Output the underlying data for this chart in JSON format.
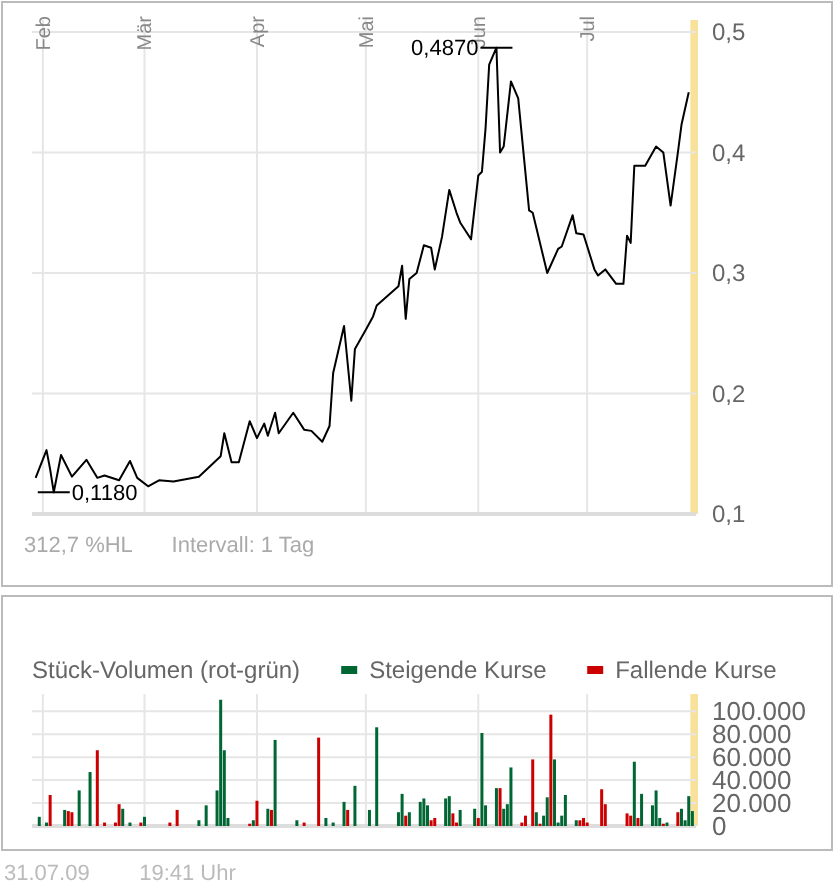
{
  "chart_data": [
    {
      "type": "line",
      "xlim": [
        "--01-29",
        "--07-31"
      ],
      "ylim": [
        0.1,
        0.51
      ],
      "xticks": [
        {
          "value": "--02-01",
          "label": "Feb"
        },
        {
          "value": "--03-01",
          "label": "Mär"
        },
        {
          "value": "--04-01",
          "label": "Apr"
        },
        {
          "value": "--05-01",
          "label": "Mai"
        },
        {
          "value": "--06-01",
          "label": "Jun"
        },
        {
          "value": "--07-01",
          "label": "Jul"
        }
      ],
      "yticks": [
        {
          "value": 0.1,
          "label": "0,1"
        },
        {
          "value": 0.2,
          "label": "0,2"
        },
        {
          "value": 0.3,
          "label": "0,3"
        },
        {
          "value": 0.4,
          "label": "0,4"
        },
        {
          "value": 0.5,
          "label": "0,5"
        }
      ],
      "grid": true,
      "legend": false,
      "marker": "none",
      "line_style": "solid",
      "bands": [
        {
          "axis": "x",
          "from": "--07-30",
          "to": "--07-31",
          "color": "#f8e19a"
        }
      ],
      "annotations": [
        {
          "text": "0,4870",
          "x": "--06-06",
          "y": 0.487
        },
        {
          "text": "0,1180",
          "x": "--02-04",
          "y": 0.118
        },
        "312,7 %HL",
        "Intervall: 1 Tag"
      ],
      "series": [
        {
          "color": "#000000",
          "x": [
            "--01-30",
            "--02-02",
            "--02-03",
            "--02-04",
            "--02-06",
            "--02-09",
            "--02-13",
            "--02-16",
            "--02-18",
            "--02-22",
            "--02-25",
            "--02-27",
            "--03-02",
            "--03-05",
            "--03-09",
            "--03-16",
            "--03-22",
            "--03-23",
            "--03-25",
            "--03-27",
            "--03-30",
            "--04-01",
            "--04-03",
            "--04-04",
            "--04-06",
            "--04-07",
            "--04-11",
            "--04-14",
            "--04-16",
            "--04-19",
            "--04-21",
            "--04-22",
            "--04-25",
            "--04-27",
            "--04-28",
            "--05-01",
            "--05-03",
            "--05-04",
            "--05-10",
            "--05-11",
            "--05-12",
            "--05-13",
            "--05-15",
            "--05-17",
            "--05-19",
            "--05-20",
            "--05-22",
            "--05-24",
            "--05-26",
            "--05-27",
            "--05-30",
            "--06-01",
            "--06-02",
            "--06-03",
            "--06-04",
            "--06-06",
            "--06-07",
            "--06-08",
            "--06-10",
            "--06-12",
            "--06-15",
            "--06-16",
            "--06-20",
            "--06-23",
            "--06-24",
            "--06-27",
            "--06-28",
            "--06-30",
            "--07-03",
            "--07-04",
            "--07-06",
            "--07-09",
            "--07-11",
            "--07-12",
            "--07-13",
            "--07-14",
            "--07-17",
            "--07-20",
            "--07-22",
            "--07-24",
            "--07-26",
            "--07-27",
            "--07-29"
          ],
          "values": [
            0.13,
            0.153,
            0.137,
            0.118,
            0.149,
            0.131,
            0.145,
            0.13,
            0.132,
            0.128,
            0.144,
            0.13,
            0.123,
            0.128,
            0.127,
            0.131,
            0.148,
            0.167,
            0.143,
            0.143,
            0.177,
            0.163,
            0.175,
            0.165,
            0.184,
            0.167,
            0.184,
            0.17,
            0.169,
            0.16,
            0.173,
            0.217,
            0.256,
            0.194,
            0.237,
            0.253,
            0.264,
            0.273,
            0.289,
            0.306,
            0.262,
            0.295,
            0.3,
            0.323,
            0.321,
            0.303,
            0.33,
            0.369,
            0.35,
            0.342,
            0.328,
            0.381,
            0.384,
            0.42,
            0.473,
            0.487,
            0.4,
            0.405,
            0.459,
            0.445,
            0.352,
            0.35,
            0.3,
            0.32,
            0.322,
            0.348,
            0.333,
            0.332,
            0.303,
            0.298,
            0.303,
            0.291,
            0.291,
            0.331,
            0.325,
            0.389,
            0.389,
            0.405,
            0.4,
            0.356,
            0.4,
            0.423,
            0.45
          ]
        }
      ]
    },
    {
      "type": "bar",
      "title": "Stück-Volumen (rot-grün)",
      "xlim": [
        "--01-29",
        "--07-31"
      ],
      "ylim": [
        0,
        115000
      ],
      "xticks": [
        {
          "value": "--02-01",
          "label": null
        },
        {
          "value": "--03-01",
          "label": null
        },
        {
          "value": "--04-01",
          "label": null
        },
        {
          "value": "--05-01",
          "label": null
        },
        {
          "value": "--06-01",
          "label": null
        },
        {
          "value": "--07-01",
          "label": null
        }
      ],
      "yticks": [
        0,
        {
          "value": 20000,
          "label": "20.000"
        },
        {
          "value": 40000,
          "label": "40.000"
        },
        {
          "value": 60000,
          "label": "60.000"
        },
        {
          "value": 80000,
          "label": "80.000"
        },
        {
          "value": 100000,
          "label": "100.000"
        }
      ],
      "grid": true,
      "legend": "top",
      "tick_labels": "y",
      "bands": [
        {
          "axis": "x",
          "from": "--07-30",
          "to": "--07-31",
          "color": "#f8e19a"
        }
      ],
      "annotations": [
        "31.07.09",
        "19:41 Uhr"
      ],
      "series": [
        {
          "name": "Steigende Kurse",
          "color": "#006633",
          "x": [
            "--01-31",
            "--02-02",
            "--02-07",
            "--02-11",
            "--02-14",
            "--02-23",
            "--02-25",
            "--03-01",
            "--03-16",
            "--03-18",
            "--03-21",
            "--03-22",
            "--03-23",
            "--03-24",
            "--03-31",
            "--04-04",
            "--04-06",
            "--04-12",
            "--04-20",
            "--04-22",
            "--04-25",
            "--04-28",
            "--05-02",
            "--05-04",
            "--05-10",
            "--05-11",
            "--05-13",
            "--05-16",
            "--05-17",
            "--05-18",
            "--05-23",
            "--05-24",
            "--05-27",
            "--05-31",
            "--06-02",
            "--06-03",
            "--06-06",
            "--06-08",
            "--06-09",
            "--06-10",
            "--06-17",
            "--06-19",
            "--06-20",
            "--06-22",
            "--06-23",
            "--06-24",
            "--06-25",
            "--06-28",
            "--07-14",
            "--07-16",
            "--07-19",
            "--07-20",
            "--07-21",
            "--07-23",
            "--07-27",
            "--07-28",
            "--07-29",
            "--07-30"
          ],
          "values": [
            8000,
            3000,
            14000,
            31000,
            47000,
            15000,
            3000,
            8000,
            5000,
            18000,
            31000,
            110000,
            66000,
            7000,
            5000,
            15000,
            75000,
            5000,
            7000,
            3000,
            21000,
            35000,
            14000,
            86000,
            12000,
            28000,
            12000,
            21000,
            24000,
            18000,
            24000,
            26000,
            14000,
            15000,
            81000,
            18000,
            33000,
            15000,
            19000,
            51000,
            12000,
            9000,
            25000,
            58000,
            3000,
            9000,
            27000,
            5000,
            56000,
            28000,
            18000,
            31000,
            7000,
            3000,
            15000,
            5000,
            26000,
            13000
          ]
        },
        {
          "name": "Fallende Kurse",
          "color": "#cc0000",
          "x": [
            "--02-03",
            "--02-08",
            "--02-09",
            "--02-16",
            "--02-18",
            "--02-21",
            "--02-22",
            "--02-28",
            "--03-08",
            "--03-10",
            "--03-30",
            "--04-01",
            "--04-05",
            "--04-14",
            "--04-18",
            "--04-26",
            "--05-12",
            "--05-19",
            "--05-20",
            "--05-25",
            "--05-26",
            "--06-01",
            "--06-07",
            "--06-13",
            "--06-14",
            "--06-16",
            "--06-18",
            "--06-21",
            "--06-29",
            "--06-30",
            "--07-01",
            "--07-05",
            "--07-06",
            "--07-12",
            "--07-13",
            "--07-15",
            "--07-22",
            "--07-26"
          ],
          "values": [
            27000,
            13000,
            12000,
            66000,
            3000,
            3000,
            19000,
            3000,
            3000,
            14000,
            2000,
            22000,
            14000,
            3000,
            77000,
            14000,
            9000,
            5000,
            7000,
            11000,
            3000,
            7000,
            33000,
            3000,
            9000,
            58000,
            2000,
            97000,
            5000,
            7000,
            3000,
            32000,
            19000,
            11000,
            9000,
            7000,
            2000,
            12000
          ]
        }
      ]
    }
  ]
}
